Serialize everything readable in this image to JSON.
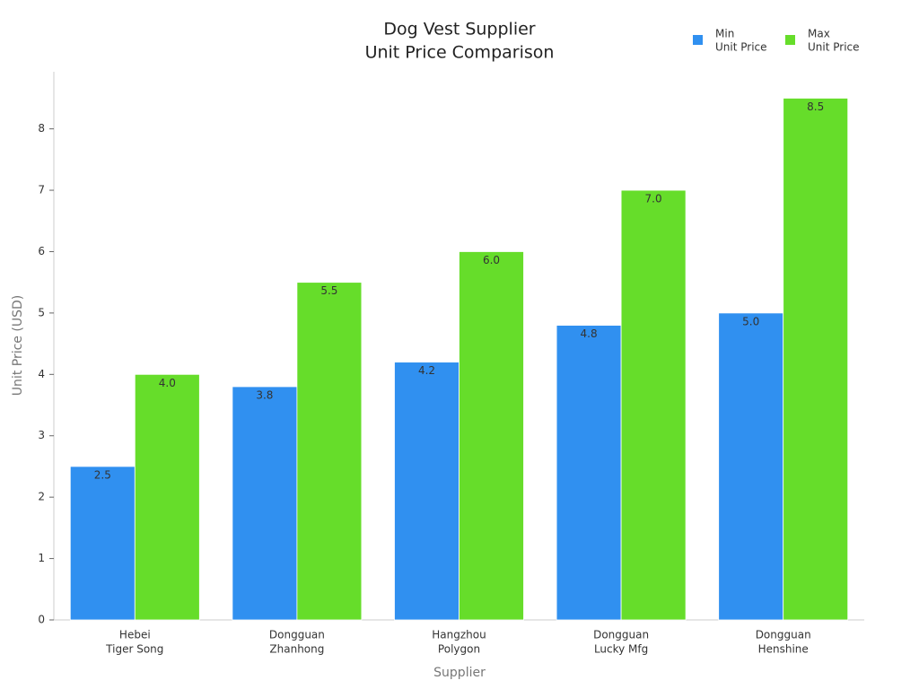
{
  "chart_data": {
    "type": "bar",
    "title": [
      "Dog Vest Supplier",
      "Unit Price Comparison"
    ],
    "x_label": "Supplier",
    "y_label": "Unit Price (USD)",
    "categories": [
      [
        "Hebei",
        "Tiger Song"
      ],
      [
        "Dongguan",
        "Zhanhong"
      ],
      [
        "Hangzhou",
        "Polygon"
      ],
      [
        "Dongguan",
        "Lucky Mfg"
      ],
      [
        "Dongguan",
        "Henshine"
      ]
    ],
    "series": [
      {
        "name": [
          "Min",
          "Unit Price"
        ],
        "color": "#3090f0",
        "values": [
          2.5,
          3.8,
          4.2,
          4.8,
          5.0
        ],
        "value_labels": [
          "2.5",
          "3.8",
          "4.2",
          "4.8",
          "5.0"
        ]
      },
      {
        "name": [
          "Max",
          "Unit Price"
        ],
        "color": "#66dd2a",
        "values": [
          4.0,
          5.5,
          6.0,
          7.0,
          8.5
        ],
        "value_labels": [
          "4.0",
          "5.5",
          "6.0",
          "7.0",
          "8.5"
        ]
      }
    ],
    "ylim": [
      0,
      8.93
    ],
    "yticks": [
      0,
      1,
      2,
      3,
      4,
      5,
      6,
      7,
      8
    ],
    "grid": false,
    "legend": "top-right"
  }
}
